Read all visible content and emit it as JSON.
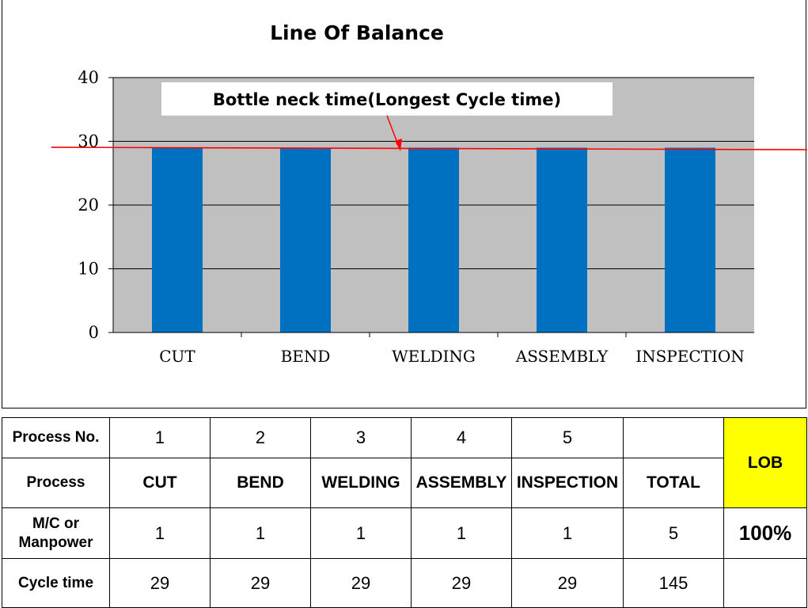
{
  "chart_data": {
    "type": "bar",
    "title": "Line Of Balance",
    "categories": [
      "CUT",
      "BEND",
      "WELDING",
      "ASSEMBLY",
      "INSPECTION"
    ],
    "values": [
      29,
      29,
      29,
      29,
      29
    ],
    "ylim": [
      0,
      40
    ],
    "yticks": [
      0,
      10,
      20,
      30,
      40
    ],
    "grid": true,
    "bar_color": "#0070c0",
    "plot_bg": "#c0c0c0",
    "reference_line": {
      "value": 29,
      "color": "#ff0000"
    },
    "annotation": "Bottle neck time(Longest Cycle time)"
  },
  "table": {
    "rows": [
      {
        "label": "Process No.",
        "cells": [
          "1",
          "2",
          "3",
          "4",
          "5",
          ""
        ]
      },
      {
        "label": "Process",
        "cells": [
          "CUT",
          "BEND",
          "WELDING",
          "ASSEMBLY",
          "INSPECTION",
          "TOTAL"
        ]
      },
      {
        "label": "M/C or Manpower",
        "cells": [
          "1",
          "1",
          "1",
          "1",
          "1",
          "5"
        ]
      },
      {
        "label": "Cycle time",
        "cells": [
          "29",
          "29",
          "29",
          "29",
          "29",
          "145"
        ]
      }
    ],
    "lob_label": "LOB",
    "lob_value": "100%",
    "lob_color": "#ffff00"
  }
}
